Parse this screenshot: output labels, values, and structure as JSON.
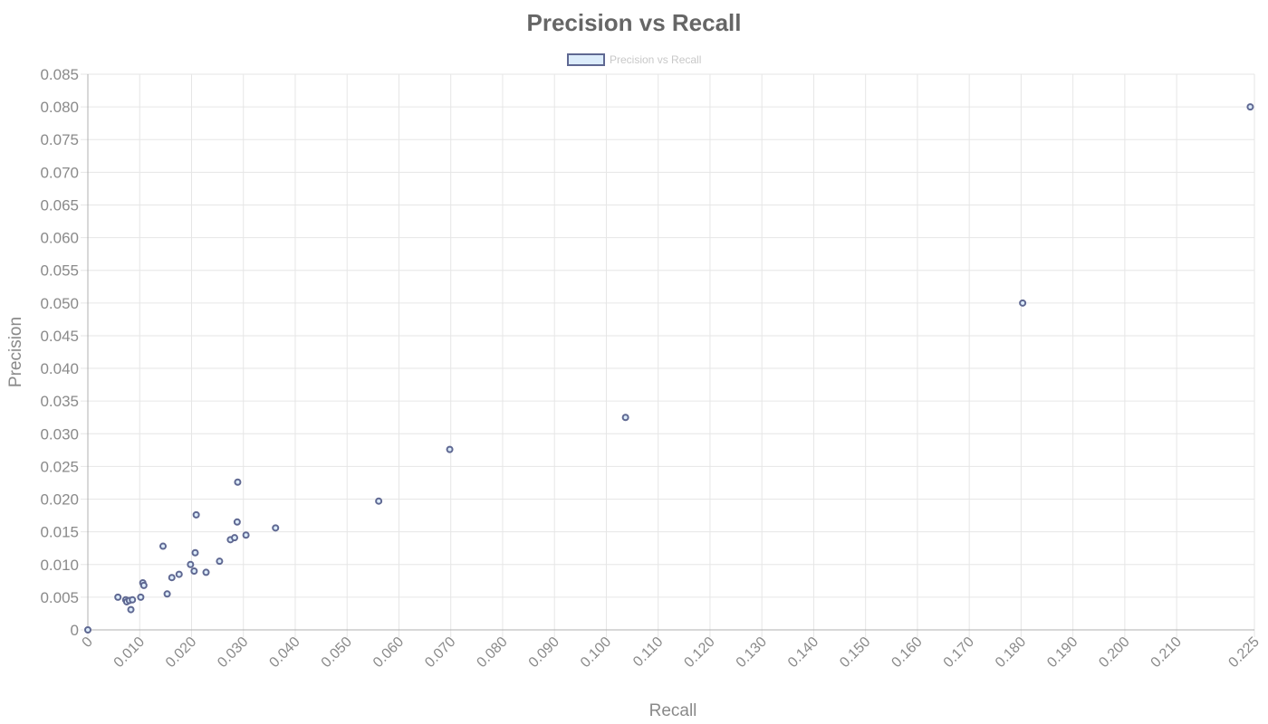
{
  "chart_data": {
    "type": "scatter",
    "title": "Precision vs Recall",
    "xlabel": "Recall",
    "ylabel": "Precision",
    "legend": {
      "position": "top",
      "entries": [
        "Precision vs Recall"
      ]
    },
    "grid": true,
    "xlim": [
      0,
      0.225
    ],
    "ylim": [
      0,
      0.085
    ],
    "x_ticks": [
      "0",
      "0.010",
      "0.020",
      "0.030",
      "0.040",
      "0.050",
      "0.060",
      "0.070",
      "0.080",
      "0.090",
      "0.100",
      "0.110",
      "0.120",
      "0.130",
      "0.140",
      "0.150",
      "0.160",
      "0.170",
      "0.180",
      "0.190",
      "0.200",
      "0.210",
      "0.225"
    ],
    "y_ticks": [
      "0",
      "0.005",
      "0.010",
      "0.015",
      "0.020",
      "0.025",
      "0.030",
      "0.035",
      "0.040",
      "0.045",
      "0.050",
      "0.055",
      "0.060",
      "0.065",
      "0.070",
      "0.075",
      "0.080",
      "0.085"
    ],
    "colors": {
      "point_fill": "#dcecfb",
      "point_stroke": "#5f6892",
      "title": "#666666",
      "text": "#8a8a8a"
    },
    "series": [
      {
        "name": "Precision vs Recall",
        "points": [
          [
            0.0,
            0.0
          ],
          [
            0.0058,
            0.005
          ],
          [
            0.0073,
            0.0046
          ],
          [
            0.0075,
            0.0043
          ],
          [
            0.008,
            0.0045
          ],
          [
            0.0083,
            0.0031
          ],
          [
            0.0086,
            0.0046
          ],
          [
            0.0102,
            0.005
          ],
          [
            0.0106,
            0.0072
          ],
          [
            0.0108,
            0.0068
          ],
          [
            0.0145,
            0.0128
          ],
          [
            0.0153,
            0.0055
          ],
          [
            0.0162,
            0.008
          ],
          [
            0.0176,
            0.0085
          ],
          [
            0.0198,
            0.01
          ],
          [
            0.0205,
            0.009
          ],
          [
            0.0207,
            0.0118
          ],
          [
            0.0209,
            0.0176
          ],
          [
            0.0228,
            0.0088
          ],
          [
            0.0254,
            0.0105
          ],
          [
            0.0275,
            0.0138
          ],
          [
            0.0283,
            0.0141
          ],
          [
            0.0288,
            0.0165
          ],
          [
            0.0289,
            0.0226
          ],
          [
            0.0305,
            0.0145
          ],
          [
            0.0362,
            0.0156
          ],
          [
            0.0561,
            0.0197
          ],
          [
            0.0698,
            0.0276
          ],
          [
            0.1037,
            0.0325
          ],
          [
            0.1803,
            0.05
          ],
          [
            0.2242,
            0.08
          ]
        ]
      }
    ]
  }
}
